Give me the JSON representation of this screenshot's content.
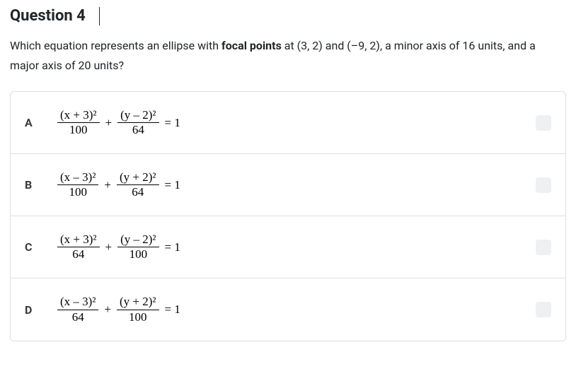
{
  "question": {
    "title": "Question 4",
    "prompt_parts": {
      "p1": "Which equation represents an ellipse with ",
      "bold": "focal points",
      "p2": " at (3, 2) and (–9, 2), a minor axis of 16 units, and a major axis of 20 units?"
    }
  },
  "choices": [
    {
      "letter": "A",
      "frac1_num": "(x + 3)²",
      "frac1_den": "100",
      "frac2_num": "(y – 2)²",
      "frac2_den": "64",
      "op": "+",
      "rhs": "= 1"
    },
    {
      "letter": "B",
      "frac1_num": "(x – 3)²",
      "frac1_den": "100",
      "frac2_num": "(y + 2)²",
      "frac2_den": "64",
      "op": "+",
      "rhs": "= 1"
    },
    {
      "letter": "C",
      "frac1_num": "(x + 3)²",
      "frac1_den": "64",
      "frac2_num": "(y – 2)²",
      "frac2_den": "100",
      "op": "+",
      "rhs": "= 1"
    },
    {
      "letter": "D",
      "frac1_num": "(x – 3)²",
      "frac1_den": "64",
      "frac2_num": "(y + 2)²",
      "frac2_den": "100",
      "op": "+",
      "rhs": "= 1"
    }
  ],
  "styling": {
    "border_color": "#e0e0e0",
    "checkbox_bg": "#eef0f2",
    "text_color": "#212529"
  }
}
